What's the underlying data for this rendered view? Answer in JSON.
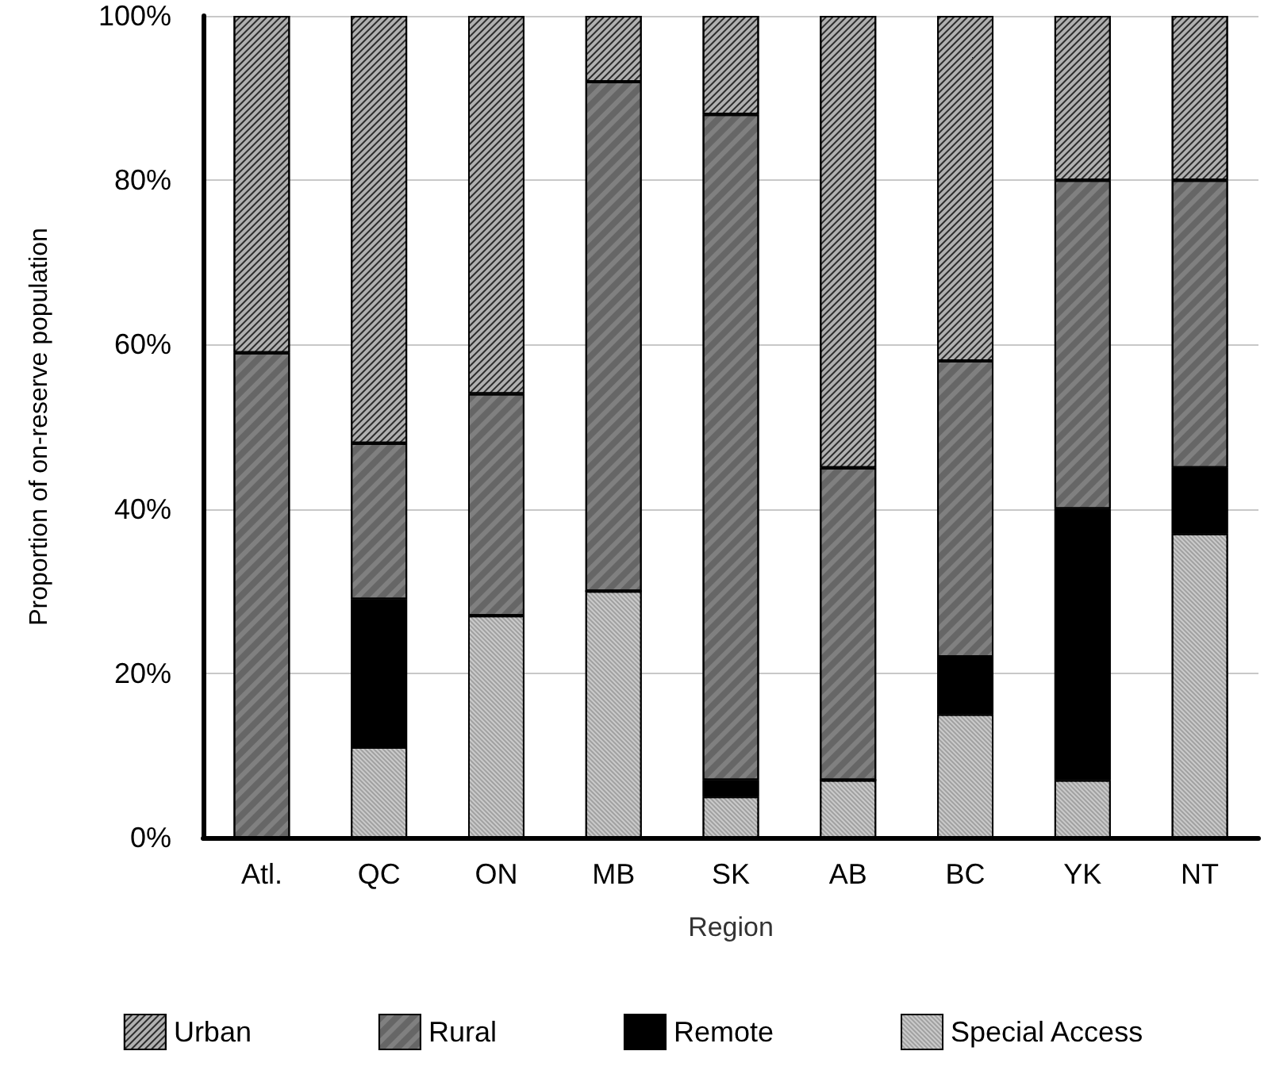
{
  "chart_data": {
    "type": "bar",
    "stacked": true,
    "xlabel": "Region",
    "ylabel": "Proportion of on-reserve population",
    "categories": [
      "Atl.",
      "QC",
      "ON",
      "MB",
      "SK",
      "AB",
      "BC",
      "YK",
      "NT"
    ],
    "series": [
      {
        "name": "Special Access",
        "color": "#a0a0a0",
        "values": [
          0,
          11,
          27,
          30,
          5,
          7,
          15,
          7,
          37
        ]
      },
      {
        "name": "Remote",
        "color": "#000000",
        "values": [
          0,
          18,
          0,
          0,
          2,
          0,
          7,
          33,
          8
        ]
      },
      {
        "name": "Rural",
        "color": "#808080",
        "values": [
          59,
          19,
          27,
          62,
          81,
          38,
          36,
          40,
          35
        ]
      },
      {
        "name": "Urban",
        "color": "#b0b0b0",
        "values": [
          41,
          52,
          46,
          8,
          12,
          55,
          42,
          20,
          20
        ]
      }
    ],
    "ylim": [
      0,
      100
    ],
    "yticks": [
      {
        "value": 0,
        "label": "0%"
      },
      {
        "value": 20,
        "label": "20%"
      },
      {
        "value": 40,
        "label": "40%"
      },
      {
        "value": 60,
        "label": "60%"
      },
      {
        "value": 80,
        "label": "80%"
      },
      {
        "value": 100,
        "label": "100%"
      }
    ],
    "grid": "y",
    "legend": "bottom"
  }
}
